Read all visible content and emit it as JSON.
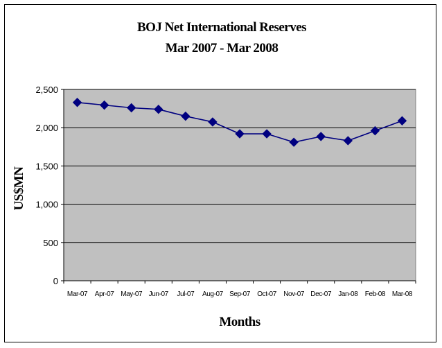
{
  "chart_data": {
    "type": "line",
    "title_line1": "BOJ Net International Reserves",
    "title_line2": "Mar 2007 - Mar 2008",
    "xlabel": "Months",
    "ylabel": "US$MN",
    "categories": [
      "Mar-07",
      "Apr-07",
      "May-07",
      "Jun-07",
      "Jul-07",
      "Aug-07",
      "Sep-07",
      "Oct-07",
      "Nov-07",
      "Dec-07",
      "Jan-08",
      "Feb-08",
      "Mar-08"
    ],
    "series": [
      {
        "values": [
          2330,
          2295,
          2260,
          2240,
          2150,
          2075,
          1920,
          1920,
          1810,
          1885,
          1830,
          1960,
          2090
        ],
        "color": "#000080"
      }
    ],
    "ylim": [
      0,
      2500
    ],
    "yticks": [
      0,
      500,
      1000,
      1500,
      2000,
      2500
    ],
    "ytick_labels": [
      "0",
      "500",
      "1,000",
      "1,500",
      "2,000",
      "2,500"
    ],
    "plot_background": "#c0c0c0",
    "grid": true,
    "legend": "none"
  }
}
